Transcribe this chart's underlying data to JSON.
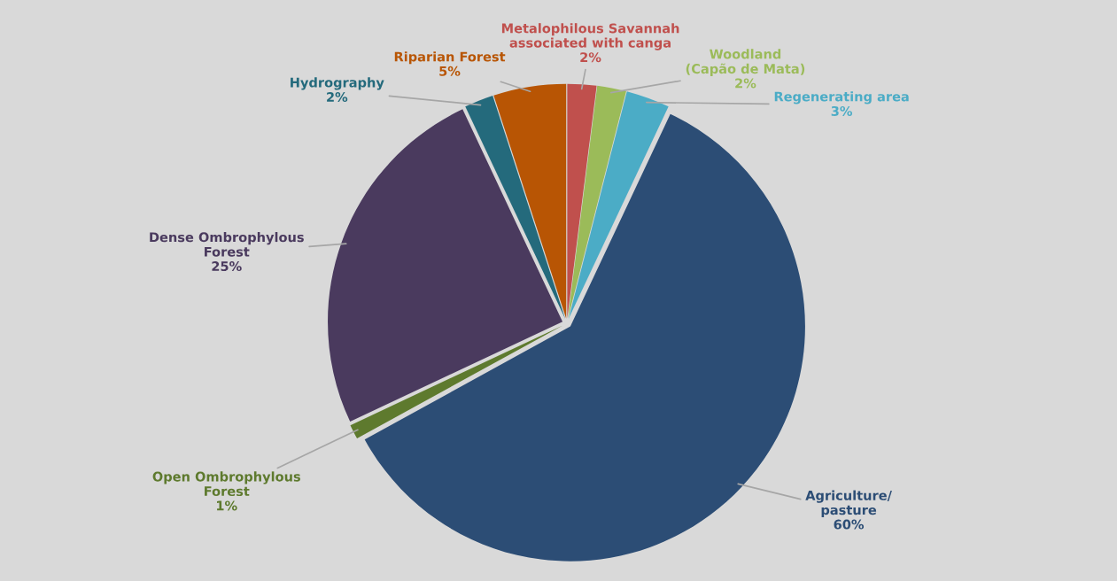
{
  "chart_data": {
    "type": "pie",
    "categories": [
      "Metalophilous Savannah\nassociated with canga",
      "Woodland\n(Capão de Mata)",
      "Regenerating area",
      "Agriculture/\npasture",
      "Open Ombrophylous\nForest",
      "Dense Ombrophylous\nForest",
      "Hydrography",
      "Riparian Forest"
    ],
    "values": [
      2,
      2,
      3,
      60,
      1,
      25,
      2,
      5
    ],
    "value_labels": [
      "2%",
      "2%",
      "3%",
      "60%",
      "1%",
      "25%",
      "2%",
      "5%"
    ],
    "colors": [
      "#c0504d",
      "#9bbb59",
      "#4bacc6",
      "#2c4d75",
      "#5e7a2e",
      "#4a3a5e",
      "#246a7c",
      "#b85504"
    ],
    "legend": false
  }
}
